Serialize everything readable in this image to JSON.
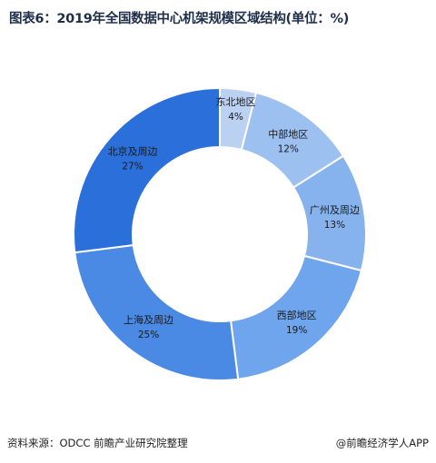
{
  "chart_data": {
    "type": "pie",
    "title": "图表6：2019年全国数据中心机架规模区域结构(单位：%)",
    "donut": true,
    "categories": [
      "东北地区",
      "中部地区",
      "广州及周边",
      "西部地区",
      "上海及周边",
      "北京及周边"
    ],
    "values": [
      4,
      12,
      13,
      19,
      25,
      27
    ],
    "value_labels": [
      "4%",
      "12%",
      "13%",
      "19%",
      "25%",
      "27%"
    ],
    "colors": [
      "#bad1f2",
      "#9cc0f0",
      "#86b3ee",
      "#6ea5ec",
      "#4a8ae4",
      "#2a6fda"
    ]
  },
  "footer": {
    "source": "资料来源：ODCC 前瞻产业研究院整理",
    "brand": "@前瞻经济学人APP"
  }
}
